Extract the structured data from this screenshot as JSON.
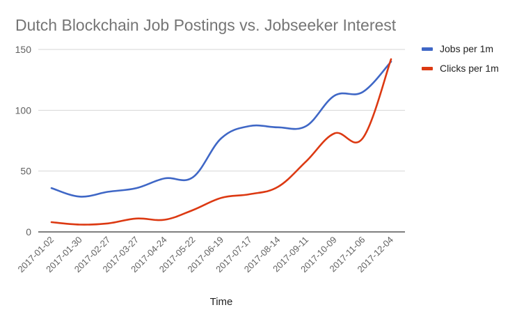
{
  "chart_data": {
    "type": "line",
    "title": "Dutch Blockchain Job Postings vs. Jobseeker Interest",
    "xlabel": "Time",
    "ylabel": "",
    "ylim": [
      0,
      150
    ],
    "yticks": [
      0,
      50,
      100,
      150
    ],
    "grid": true,
    "legend_position": "right",
    "categories": [
      "2017-01-02",
      "2017-01-30",
      "2017-02-27",
      "2017-03-27",
      "2017-04-24",
      "2017-05-22",
      "2017-06-19",
      "2017-07-17",
      "2017-08-14",
      "2017-09-11",
      "2017-10-09",
      "2017-11-06",
      "2017-12-04"
    ],
    "series": [
      {
        "name": "Jobs per 1m",
        "color": "#3f67c6",
        "values": [
          36,
          29,
          33,
          36,
          44,
          45,
          77,
          87,
          86,
          87,
          112,
          115,
          140
        ]
      },
      {
        "name": "Clicks per 1m",
        "color": "#dc3912",
        "values": [
          8,
          6,
          7,
          11,
          10,
          18,
          28,
          31,
          37,
          58,
          81,
          77,
          142
        ]
      }
    ]
  }
}
